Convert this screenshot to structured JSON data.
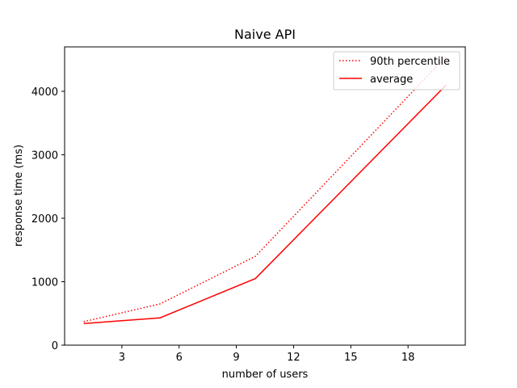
{
  "chart_data": {
    "type": "line",
    "title": "Naive API",
    "xlabel": "number of users",
    "ylabel": "response time (ms)",
    "xlim": [
      0,
      21
    ],
    "ylim": [
      0,
      4700
    ],
    "xticks": [
      3,
      6,
      9,
      12,
      15,
      18
    ],
    "yticks": [
      0,
      1000,
      2000,
      3000,
      4000
    ],
    "grid": false,
    "legend_position": "top-right",
    "series": [
      {
        "name": "90th percentile",
        "style": "dotted",
        "color": "#ff0000",
        "x": [
          1,
          5,
          10,
          20
        ],
        "y": [
          370,
          650,
          1400,
          4550
        ]
      },
      {
        "name": "average",
        "style": "solid",
        "color": "#ff0000",
        "x": [
          1,
          5,
          10,
          20
        ],
        "y": [
          340,
          430,
          1050,
          4100
        ]
      }
    ]
  }
}
